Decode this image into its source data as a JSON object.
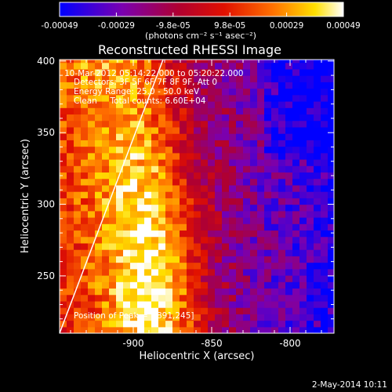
{
  "chart_data": {
    "type": "heatmap",
    "title": "Reconstructed RHESSI Image",
    "xlabel": "Heliocentric X (arcsec)",
    "ylabel": "Heliocentric Y (arcsec)",
    "xlim": [
      -947,
      -772
    ],
    "ylim": [
      210,
      401
    ],
    "x_ticks": [
      -900,
      -850,
      -800
    ],
    "y_ticks": [
      250,
      300,
      350,
      400
    ],
    "colorbar": {
      "ticks": [
        "-0.00049",
        "-0.00029",
        "-9.8e-05",
        "9.8e-05",
        "0.00029",
        "0.00049"
      ],
      "range": [
        -0.00049,
        0.00049
      ],
      "label": "(photons cm⁻² s⁻¹ asec⁻²)",
      "colors": [
        "#0000ff",
        "#7a00b0",
        "#b00030",
        "#e01000",
        "#ff7000",
        "#ffe000",
        "#ffffff"
      ]
    },
    "annotations": [
      "10-Mar-2012 05:14:22.000 to 05:20:22.000",
      "Detectors: 3F 5F 6F 7F 8F 9F, Att 0",
      "Energy Range: 25.0 - 50.0 keV",
      "Clean     Total counts: 6.60E+04"
    ],
    "peak_label": "Position of Peak = [-891,245]",
    "limb_line": {
      "x": [
        -947,
        -881
      ],
      "y": [
        210,
        401
      ]
    },
    "pixel_size_arcsec": 4.5,
    "grid": false
  },
  "footer_date": "2-May-2014 10:11"
}
